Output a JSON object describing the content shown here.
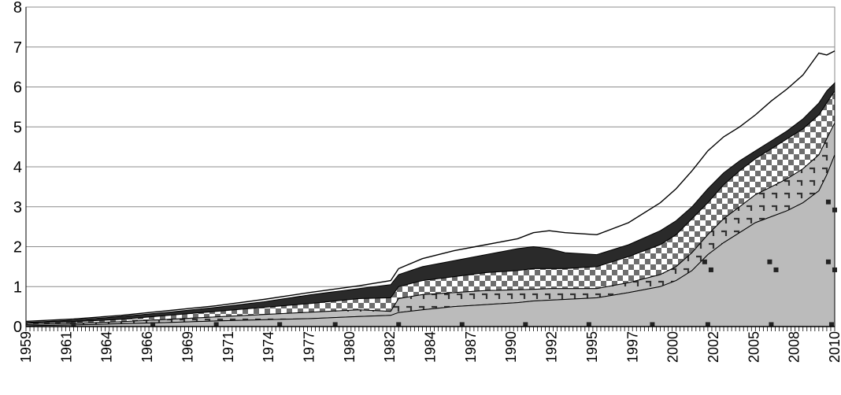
{
  "chart_data": {
    "type": "area",
    "title": "",
    "xlabel": "",
    "ylabel": "",
    "xlim": [
      1959,
      2010
    ],
    "ylim": [
      0,
      8
    ],
    "y_ticks": [
      "0",
      "1",
      "2",
      "3",
      "4",
      "5",
      "6",
      "7",
      "8"
    ],
    "x_tick_labels": [
      "1959",
      "1961",
      "1964",
      "1966",
      "1969",
      "1971",
      "1974",
      "1977",
      "1980",
      "1982",
      "1984",
      "1987",
      "1990",
      "1992",
      "1995",
      "1997",
      "2000",
      "2002",
      "2005",
      "2008",
      "2010"
    ],
    "grid": true,
    "legend": "none",
    "x": [
      1959,
      1962,
      1965,
      1968,
      1971,
      1974,
      1977,
      1980,
      1982,
      1982.5,
      1984,
      1986,
      1988,
      1990,
      1991,
      1992,
      1993,
      1995,
      1997,
      1999,
      2000,
      2001,
      2002,
      2003,
      2004,
      2005,
      2006,
      2007,
      2008,
      2009,
      2009.5,
      2010
    ],
    "series": [
      {
        "values": [
          0.02,
          0.04,
          0.07,
          0.1,
          0.14,
          0.17,
          0.2,
          0.25,
          0.28,
          0.35,
          0.42,
          0.5,
          0.55,
          0.6,
          0.64,
          0.66,
          0.68,
          0.72,
          0.85,
          1.0,
          1.15,
          1.4,
          1.8,
          2.1,
          2.35,
          2.6,
          2.75,
          2.9,
          3.1,
          3.4,
          3.8,
          4.3
        ],
        "fill": "#bbbbbb",
        "pattern": "solid"
      },
      {
        "values": [
          0.05,
          0.08,
          0.12,
          0.18,
          0.24,
          0.3,
          0.36,
          0.42,
          0.38,
          0.7,
          0.8,
          0.85,
          0.9,
          0.92,
          0.93,
          0.95,
          0.95,
          0.95,
          1.1,
          1.3,
          1.5,
          1.85,
          2.3,
          2.7,
          3.0,
          3.3,
          3.5,
          3.7,
          3.95,
          4.3,
          4.7,
          5.1
        ],
        "fill": "#999999",
        "pattern": "hooks"
      },
      {
        "values": [
          0.08,
          0.12,
          0.18,
          0.28,
          0.38,
          0.48,
          0.58,
          0.7,
          0.72,
          1.0,
          1.15,
          1.25,
          1.35,
          1.4,
          1.45,
          1.45,
          1.45,
          1.5,
          1.75,
          2.05,
          2.3,
          2.7,
          3.1,
          3.55,
          3.9,
          4.2,
          4.45,
          4.7,
          4.95,
          5.3,
          5.6,
          5.9
        ],
        "fill": "#6e6e6e",
        "pattern": "checker"
      },
      {
        "values": [
          0.1,
          0.16,
          0.25,
          0.36,
          0.48,
          0.62,
          0.8,
          0.95,
          1.05,
          1.3,
          1.5,
          1.65,
          1.8,
          1.95,
          2.0,
          1.95,
          1.85,
          1.8,
          2.05,
          2.4,
          2.65,
          3.0,
          3.45,
          3.85,
          4.15,
          4.4,
          4.65,
          4.9,
          5.2,
          5.6,
          5.9,
          6.1
        ],
        "fill": "#2a2a2a",
        "pattern": "solid"
      },
      {
        "values": [
          0.13,
          0.19,
          0.28,
          0.4,
          0.52,
          0.68,
          0.86,
          1.02,
          1.15,
          1.45,
          1.7,
          1.9,
          2.05,
          2.2,
          2.35,
          2.4,
          2.35,
          2.3,
          2.6,
          3.1,
          3.45,
          3.9,
          4.4,
          4.75,
          5.0,
          5.3,
          5.65,
          5.95,
          6.3,
          6.85,
          6.8,
          6.9
        ],
        "fill": "none",
        "pattern": "line"
      }
    ],
    "markers": [
      {
        "x": 1962,
        "y": 0.05
      },
      {
        "x": 1967,
        "y": 0.05
      },
      {
        "x": 1971,
        "y": 0.05
      },
      {
        "x": 1975,
        "y": 0.05
      },
      {
        "x": 1978.5,
        "y": 0.05
      },
      {
        "x": 1982.5,
        "y": 0.05
      },
      {
        "x": 1986.5,
        "y": 0.05
      },
      {
        "x": 1990.5,
        "y": 0.05
      },
      {
        "x": 1994.5,
        "y": 0.05
      },
      {
        "x": 1998.5,
        "y": 0.05
      },
      {
        "x": 2002,
        "y": 0.05
      },
      {
        "x": 2006,
        "y": 0.05
      },
      {
        "x": 2009.8,
        "y": 0.05
      },
      {
        "x": 2001.8,
        "y": 1.62
      },
      {
        "x": 2002.2,
        "y": 1.42
      },
      {
        "x": 2005.9,
        "y": 1.62
      },
      {
        "x": 2006.3,
        "y": 1.42
      },
      {
        "x": 2009.6,
        "y": 1.62
      },
      {
        "x": 2010.0,
        "y": 1.42
      },
      {
        "x": 2009.6,
        "y": 3.12
      },
      {
        "x": 2010.0,
        "y": 2.92
      }
    ]
  }
}
